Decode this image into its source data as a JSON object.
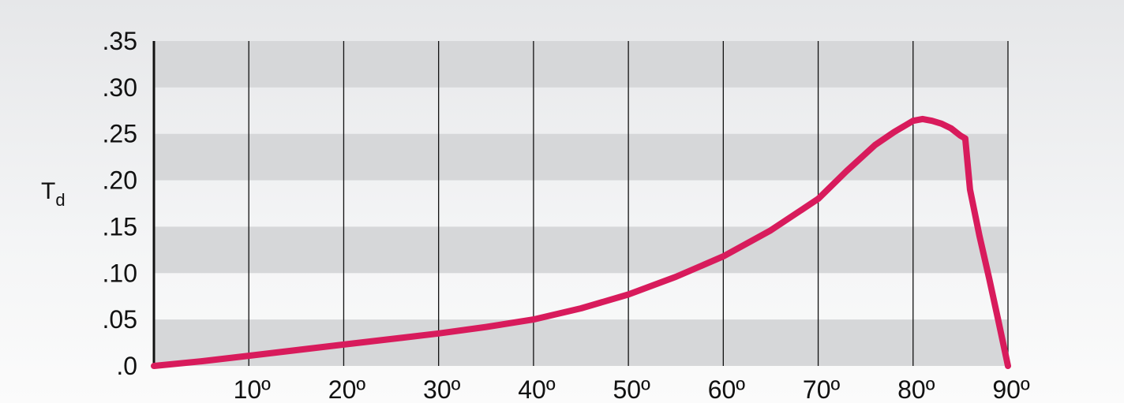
{
  "chart_data": {
    "type": "line",
    "title": "",
    "xlabel": "",
    "ylabel": "T",
    "ylabel_subscript": "d",
    "xlim": [
      0,
      90
    ],
    "ylim": [
      0,
      0.35
    ],
    "x_ticks": [
      10,
      20,
      30,
      40,
      50,
      60,
      70,
      80,
      90
    ],
    "x_tick_labels": [
      "10º",
      "20º",
      "30º",
      "40º",
      "50º",
      "60º",
      "70º",
      "80º",
      "90º"
    ],
    "y_ticks": [
      0,
      0.05,
      0.1,
      0.15,
      0.2,
      0.25,
      0.3,
      0.35
    ],
    "y_tick_labels": [
      ".0",
      ".05",
      ".10",
      ".15",
      ".20",
      ".25",
      ".30",
      ".35"
    ],
    "grid": "vertical lines at x ticks, alternating horizontal bands",
    "legend": "none",
    "series": [
      {
        "color": "#d81b5c",
        "x": [
          0,
          5,
          10,
          15,
          20,
          25,
          30,
          35,
          40,
          45,
          50,
          55,
          60,
          65,
          70,
          73,
          76,
          78,
          80,
          81,
          82,
          83,
          84,
          85,
          85.5,
          86,
          87,
          88,
          89,
          90
        ],
        "y": [
          0,
          0.005,
          0.011,
          0.017,
          0.023,
          0.029,
          0.035,
          0.042,
          0.05,
          0.062,
          0.077,
          0.096,
          0.118,
          0.146,
          0.18,
          0.21,
          0.238,
          0.252,
          0.264,
          0.266,
          0.264,
          0.261,
          0.256,
          0.248,
          0.245,
          0.19,
          0.14,
          0.095,
          0.048,
          0.0
        ]
      }
    ]
  }
}
